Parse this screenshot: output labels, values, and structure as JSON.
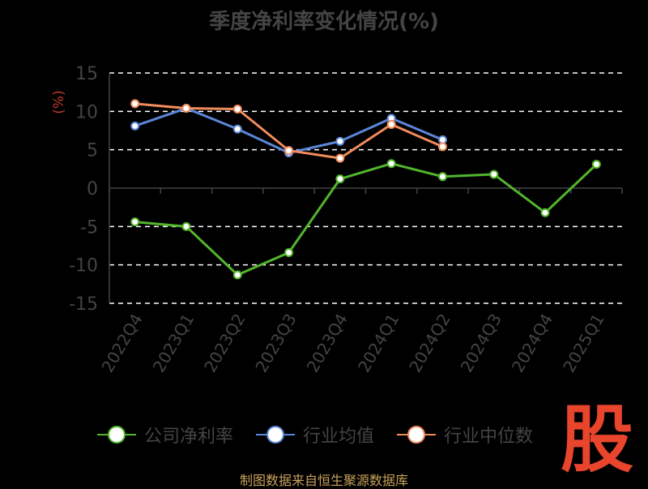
{
  "title": "季度净利率变化情况(%)",
  "source": "制图数据来自恒生聚源数据库",
  "logo_text": "股",
  "chart_data": {
    "type": "line",
    "title": "季度净利率变化情况(%)",
    "ylabel": "(%)",
    "ylim": [
      -15,
      15
    ],
    "yticks": [
      15,
      10,
      5,
      0,
      -5,
      -10,
      -15
    ],
    "grid": true,
    "legend_position": "bottom",
    "categories": [
      "2022Q4",
      "2023Q1",
      "2023Q2",
      "2023Q3",
      "2023Q4",
      "2024Q1",
      "2024Q2",
      "2024Q3",
      "2024Q4",
      "2025Q1"
    ],
    "series": [
      {
        "name": "公司净利率",
        "color": "#52b52c",
        "values": [
          -4.4,
          -5.0,
          -11.3,
          -8.4,
          1.2,
          3.2,
          1.5,
          1.8,
          -3.2,
          3.1
        ]
      },
      {
        "name": "行业均值",
        "color": "#5b86d8",
        "values": [
          8.1,
          10.4,
          7.7,
          4.6,
          6.1,
          9.1,
          6.3,
          null,
          null,
          null
        ]
      },
      {
        "name": "行业中位数",
        "color": "#f28c5c",
        "values": [
          11.0,
          10.4,
          10.3,
          4.9,
          3.9,
          8.3,
          5.4,
          null,
          null,
          null
        ]
      }
    ]
  }
}
